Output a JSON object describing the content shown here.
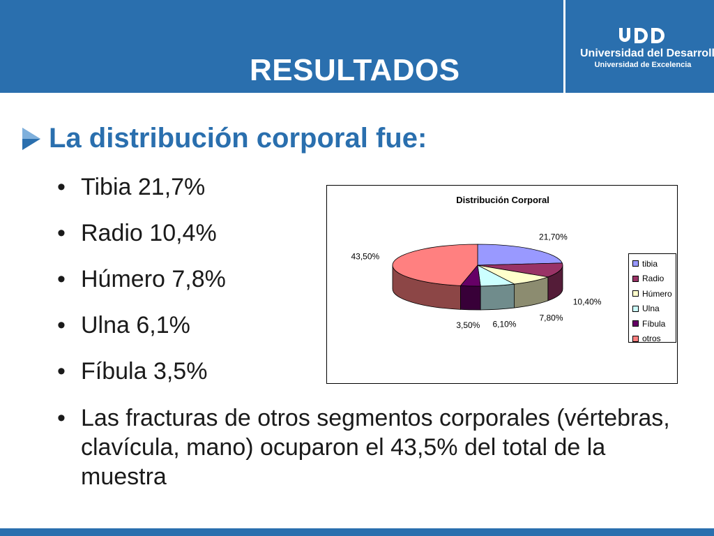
{
  "header": {
    "title": "RESULTADOS",
    "logo_name": "Universidad del Desarrollo",
    "logo_sub": "Universidad de Excelencia",
    "logo_mark_text": "UDD"
  },
  "main": {
    "heading": "La distribución corporal fue:",
    "bullets": [
      "Tibia 21,7%",
      "Radio 10,4%",
      "Húmero 7,8%",
      "Ulna 6,1%",
      "Fíbula 3,5%",
      "Las fracturas de otros segmentos corporales (vértebras, clavícula, mano) ocuparon el 43,5% del total de la muestra"
    ]
  },
  "colors": {
    "brand_blue": "#2a6fae"
  },
  "chart_data": {
    "type": "pie",
    "title": "Distribución Corporal",
    "categories": [
      "tibia",
      "Radio",
      "Húmero",
      "Ulna",
      "Fíbula",
      "otros"
    ],
    "values": [
      21.7,
      10.4,
      7.8,
      6.1,
      3.5,
      43.5
    ],
    "data_labels": [
      "21,70%",
      "10,40%",
      "7,80%",
      "6,10%",
      "3,50%",
      "43,50%"
    ],
    "colors": [
      "#9999ff",
      "#993366",
      "#ffffcc",
      "#ccffff",
      "#660066",
      "#ff8080"
    ],
    "three_d": true,
    "legend_position": "right"
  }
}
